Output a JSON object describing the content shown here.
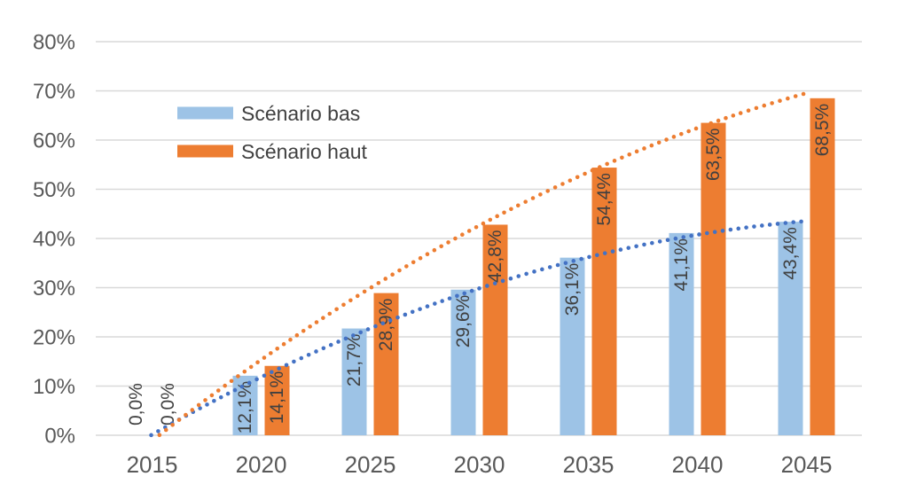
{
  "chart_data": {
    "type": "bar",
    "title": "",
    "categories": [
      "2015",
      "2020",
      "2025",
      "2030",
      "2035",
      "2040",
      "2045"
    ],
    "series": [
      {
        "name": "Scénario bas",
        "color": "#9DC3E6",
        "trend_color": "#4472C4",
        "values": [
          0,
          12.1,
          21.7,
          29.6,
          36.1,
          41.1,
          43.4
        ],
        "labels": [
          "0,0%",
          "12,1%",
          "21,7%",
          "29,6%",
          "36,1%",
          "41,1%",
          "43,4%"
        ]
      },
      {
        "name": "Scénario haut",
        "color": "#ED7D31",
        "trend_color": "#ED7D31",
        "values": [
          0,
          14.1,
          28.9,
          42.8,
          54.4,
          63.5,
          68.5
        ],
        "labels": [
          "0,0%",
          "14,1%",
          "28,9%",
          "42,8%",
          "54,4%",
          "63,5%",
          "68,5%"
        ]
      }
    ],
    "y_axis": {
      "min": 0,
      "max": 80,
      "step": 10,
      "ticks": [
        "0%",
        "10%",
        "20%",
        "30%",
        "40%",
        "50%",
        "60%",
        "70%",
        "80%"
      ]
    },
    "x_axis": {
      "label": ""
    },
    "grid": true,
    "legend": {
      "position": "upper-left-inside"
    },
    "trendline": {
      "type": "polynomial",
      "order": 2,
      "style": "dotted"
    },
    "colors": {
      "background": "#FFFFFF",
      "gridline": "#D9D9D9",
      "axis_text": "#595959",
      "label_text": "#404040"
    }
  }
}
